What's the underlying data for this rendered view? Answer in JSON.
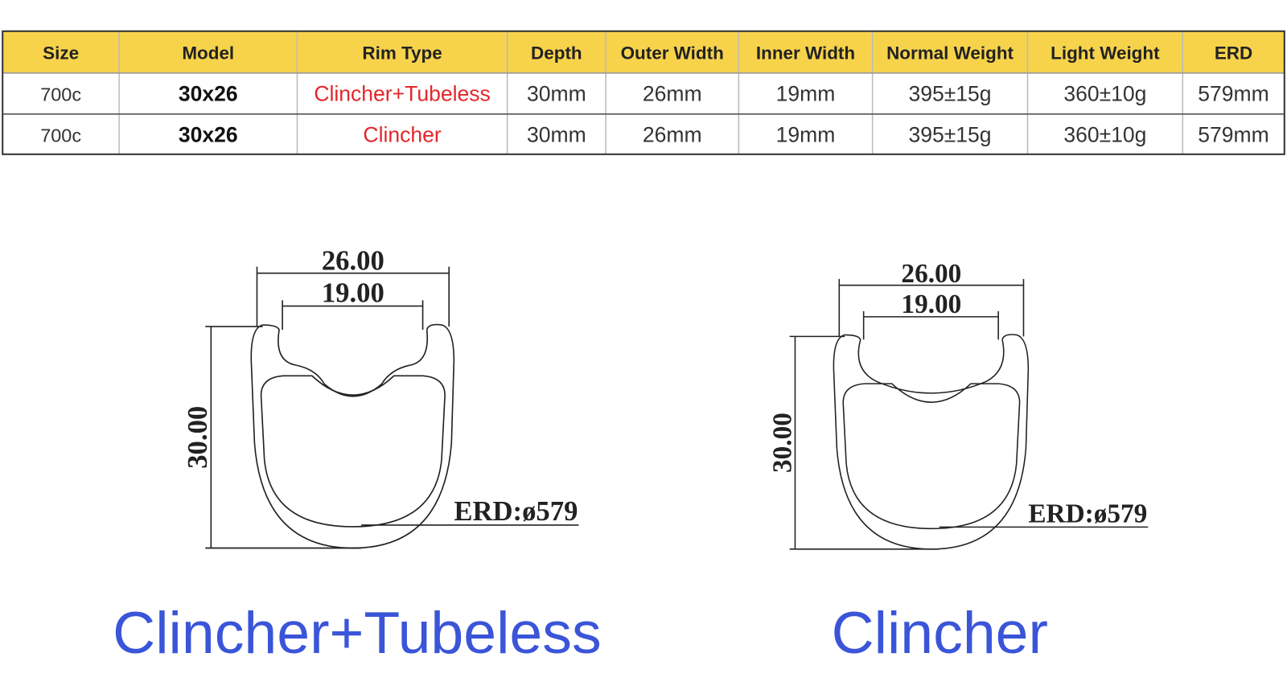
{
  "table": {
    "headers": [
      "Size",
      "Model",
      "Rim Type",
      "Depth",
      "Outer Width",
      "Inner Width",
      "Normal Weight",
      "Light Weight",
      "ERD"
    ],
    "rows": [
      [
        "700c",
        "30x26",
        "Clincher+Tubeless",
        "30mm",
        "26mm",
        "19mm",
        "395±15g",
        "360±10g",
        "579mm"
      ],
      [
        "700c",
        "30x26",
        "Clincher",
        "30mm",
        "26mm",
        "19mm",
        "395±15g",
        "360±10g",
        "579mm"
      ]
    ]
  },
  "diagrams": [
    {
      "outer_width": "26.00",
      "inner_width": "19.00",
      "depth": "30.00",
      "erd": "ERD:ø579",
      "caption": "Clincher+Tubeless"
    },
    {
      "outer_width": "26.00",
      "inner_width": "19.00",
      "depth": "30.00",
      "erd": "ERD:ø579",
      "caption": "Clincher"
    }
  ]
}
